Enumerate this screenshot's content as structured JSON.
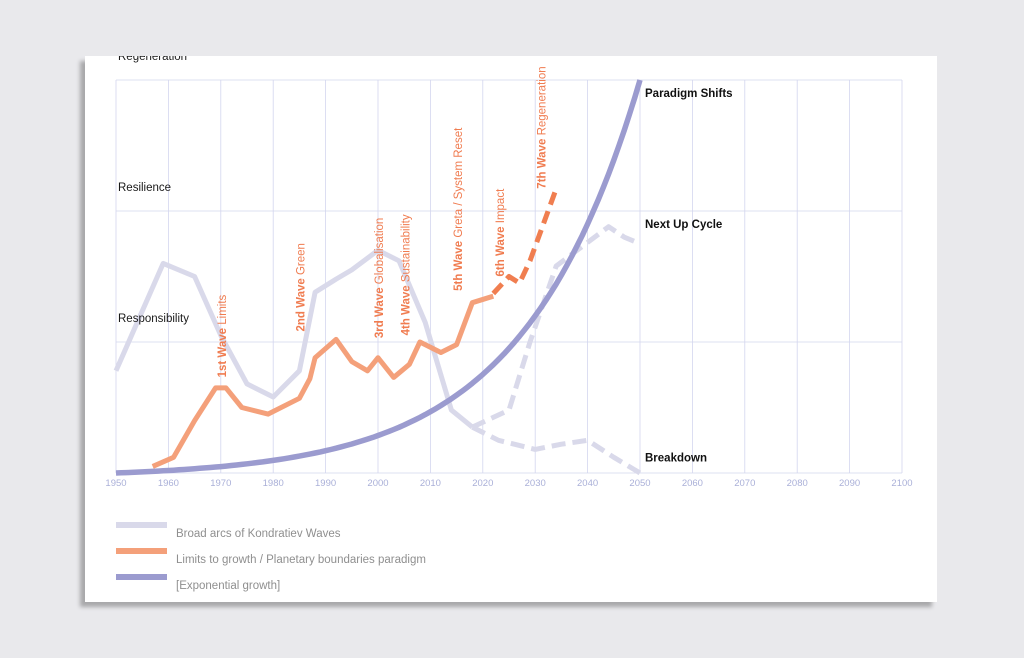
{
  "colors": {
    "background": "#e9e9ec",
    "card": "#ffffff",
    "grid": "#d3d6ee",
    "kondratiev": "#d9d9ea",
    "limits": "#f4a07a",
    "limits_future": "#f07e50",
    "exponential": "#9b9bcf",
    "wave_label": "#f07c50",
    "tick": "#aab0d8"
  },
  "chart_data": {
    "type": "line",
    "xlim": [
      1950,
      2100
    ],
    "ylim": [
      0,
      3
    ],
    "x_ticks": [
      "1950",
      "1960",
      "1970",
      "1980",
      "1990",
      "2000",
      "2010",
      "2020",
      "2030",
      "2040",
      "2050",
      "2060",
      "2070",
      "2080",
      "2090",
      "2100"
    ],
    "y_labels": [
      "Responsibility",
      "Resilience",
      "Regeneration"
    ],
    "right_labels": [
      {
        "text": "Paradigm Shifts",
        "y": 2.9
      },
      {
        "text": "Next Up Cycle",
        "y": 1.9
      },
      {
        "text": "Breakdown",
        "y": 0.12
      }
    ],
    "wave_labels": [
      {
        "bold": "1st Wave",
        "light": "Limits",
        "x": 1971,
        "y": 0.73
      },
      {
        "bold": "2nd Wave",
        "light": "Green",
        "x": 1986,
        "y": 1.08
      },
      {
        "bold": "3rd Wave",
        "light": "Globalisation",
        "x": 2001,
        "y": 1.03
      },
      {
        "bold": "4th Wave",
        "light": "Sustainability",
        "x": 2006,
        "y": 1.05
      },
      {
        "bold": "5th Wave",
        "light": "Greta / System Reset",
        "x": 2016,
        "y": 1.39
      },
      {
        "bold": "6th Wave",
        "light": "Impact",
        "x": 2024,
        "y": 1.5
      },
      {
        "bold": "7th Wave",
        "light": "Regeneration",
        "x": 2032,
        "y": 2.17
      }
    ],
    "series": [
      {
        "name": "Broad arcs of Kondratiev Waves",
        "points": [
          [
            1950,
            0.78
          ],
          [
            1959,
            1.6
          ],
          [
            1965,
            1.5
          ],
          [
            1970,
            1.05
          ],
          [
            1975,
            0.68
          ],
          [
            1980,
            0.58
          ],
          [
            1985,
            0.78
          ],
          [
            1988,
            1.38
          ],
          [
            1992,
            1.48
          ],
          [
            1995,
            1.55
          ],
          [
            2000,
            1.7
          ],
          [
            2004,
            1.62
          ],
          [
            2009,
            1.15
          ],
          [
            2014,
            0.48
          ],
          [
            2018,
            0.35
          ]
        ]
      },
      {
        "name": "Broad arcs of Kondratiev Waves",
        "dashed": true,
        "points": [
          [
            2018,
            0.35
          ],
          [
            2025,
            0.48
          ],
          [
            2029,
            1.0
          ],
          [
            2034,
            1.58
          ],
          [
            2038,
            1.7
          ],
          [
            2044,
            1.88
          ],
          [
            2047,
            1.8
          ],
          [
            2050,
            1.75
          ]
        ]
      },
      {
        "name": "Broad arcs of Kondratiev Waves",
        "dashed": true,
        "points": [
          [
            2018,
            0.35
          ],
          [
            2023,
            0.25
          ],
          [
            2030,
            0.18
          ],
          [
            2035,
            0.22
          ],
          [
            2040,
            0.25
          ],
          [
            2045,
            0.12
          ],
          [
            2050,
            0.0
          ]
        ]
      },
      {
        "name": "Limits to growth / Planetary boundaries paradigm",
        "points": [
          [
            1957,
            0.05
          ],
          [
            1961,
            0.12
          ],
          [
            1965,
            0.4
          ],
          [
            1969,
            0.65
          ],
          [
            1971,
            0.65
          ],
          [
            1974,
            0.5
          ],
          [
            1979,
            0.45
          ],
          [
            1985,
            0.57
          ],
          [
            1987,
            0.72
          ],
          [
            1988,
            0.88
          ],
          [
            1992,
            1.02
          ],
          [
            1995,
            0.85
          ],
          [
            1998,
            0.78
          ],
          [
            2000,
            0.88
          ],
          [
            2003,
            0.73
          ],
          [
            2006,
            0.83
          ],
          [
            2008,
            1.0
          ],
          [
            2012,
            0.92
          ],
          [
            2015,
            0.98
          ],
          [
            2018,
            1.3
          ],
          [
            2022,
            1.35
          ]
        ]
      },
      {
        "name": "Limits to growth / Planetary boundaries paradigm",
        "dashed": true,
        "points": [
          [
            2022,
            1.37
          ],
          [
            2025,
            1.5
          ],
          [
            2027,
            1.45
          ],
          [
            2029,
            1.62
          ],
          [
            2034,
            2.17
          ]
        ]
      },
      {
        "name": "[Exponential growth]",
        "curve": "exponential",
        "x_range": [
          1950,
          2050
        ],
        "y_end": 3.0
      }
    ]
  },
  "legend": [
    {
      "label": "Broad arcs of Kondratiev Waves",
      "color": "#d9d9ea"
    },
    {
      "label": "Limits to growth / Planetary boundaries paradigm",
      "color": "#f4a07a"
    },
    {
      "label": "[Exponential growth]",
      "color": "#9b9bcf"
    }
  ]
}
